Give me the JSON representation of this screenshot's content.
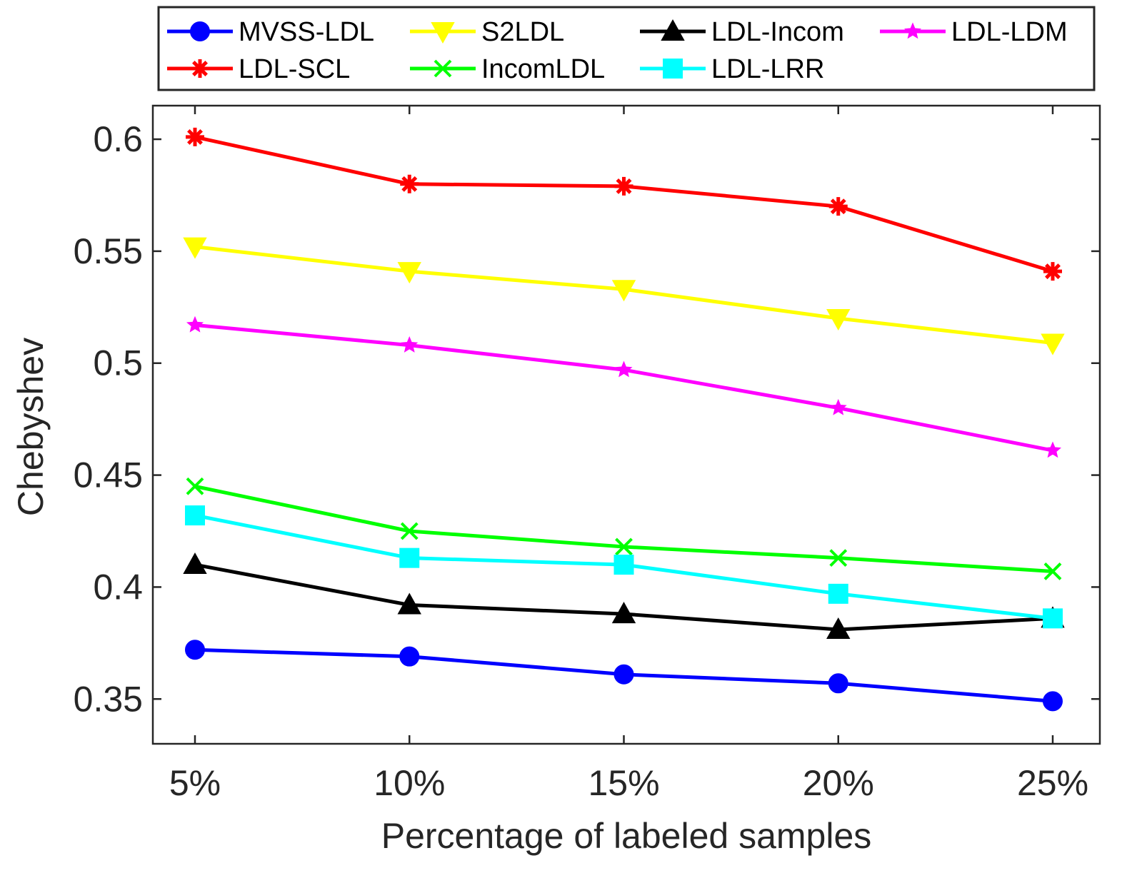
{
  "chart_data": {
    "type": "line",
    "xlabel": "Percentage of labeled samples",
    "ylabel": "Chebyshev",
    "categories": [
      "5%",
      "10%",
      "15%",
      "20%",
      "25%"
    ],
    "ylim": [
      0.33,
      0.615
    ],
    "yticks": [
      0.35,
      0.4,
      0.45,
      0.5,
      0.55,
      0.6
    ],
    "ytick_labels": [
      "0.35",
      "0.4",
      "0.45",
      "0.5",
      "0.55",
      "0.6"
    ],
    "grid": false,
    "legend_position": "top",
    "series": [
      {
        "name": "MVSS-LDL",
        "color": "#0000ff",
        "marker": "circle",
        "values": [
          0.372,
          0.369,
          0.361,
          0.357,
          0.349
        ]
      },
      {
        "name": "S2LDL",
        "color": "#ffff00",
        "marker": "triangle-down",
        "values": [
          0.552,
          0.541,
          0.533,
          0.52,
          0.509
        ]
      },
      {
        "name": "LDL-Incom",
        "color": "#000000",
        "marker": "triangle-up",
        "values": [
          0.41,
          0.392,
          0.388,
          0.381,
          0.386
        ]
      },
      {
        "name": "LDL-LDM",
        "color": "#ff00ff",
        "marker": "star",
        "values": [
          0.517,
          0.508,
          0.497,
          0.48,
          0.461
        ]
      },
      {
        "name": "LDL-SCL",
        "color": "#ff0000",
        "marker": "asterisk",
        "values": [
          0.601,
          0.58,
          0.579,
          0.57,
          0.541
        ]
      },
      {
        "name": "IncomLDL",
        "color": "#00ff00",
        "marker": "x",
        "values": [
          0.445,
          0.425,
          0.418,
          0.413,
          0.407
        ]
      },
      {
        "name": "LDL-LRR",
        "color": "#00ffff",
        "marker": "square",
        "values": [
          0.432,
          0.413,
          0.41,
          0.397,
          0.386
        ]
      }
    ]
  }
}
